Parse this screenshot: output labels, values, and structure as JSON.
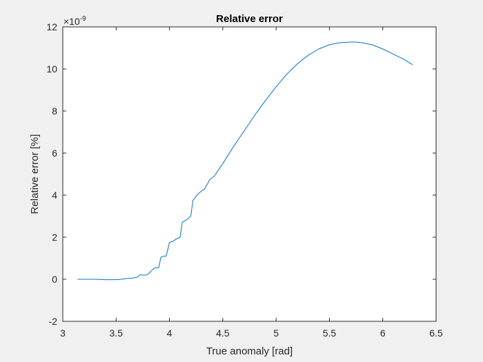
{
  "chart_data": {
    "type": "line",
    "title": "Relative error",
    "xlabel": "True anomaly [rad]",
    "ylabel": "Relative error [%]",
    "y_exponent_label": "×10",
    "y_exponent_power": "-9",
    "xlim": [
      3,
      6.5
    ],
    "ylim": [
      -2,
      12
    ],
    "xticks": [
      "3",
      "3.5",
      "4",
      "4.5",
      "5",
      "5.5",
      "6",
      "6.5"
    ],
    "yticks": [
      "-2",
      "0",
      "2",
      "4",
      "6",
      "8",
      "10",
      "12"
    ],
    "grid": false,
    "box": true,
    "colors": {
      "background": "#f0f0f0",
      "axes_background": "#ffffff",
      "axes": "#262626",
      "series": "#0072bd"
    },
    "series": [
      {
        "x": [
          3.14,
          3.3,
          3.4,
          3.5,
          3.55,
          3.62,
          3.65,
          3.7,
          3.72,
          3.78,
          3.8,
          3.85,
          3.87,
          3.9,
          3.92,
          3.95,
          3.97,
          4.0,
          4.03,
          4.06,
          4.08,
          4.1,
          4.12,
          4.15,
          4.18,
          4.2,
          4.22,
          4.25,
          4.3,
          4.33,
          4.38,
          4.42,
          4.5,
          4.6,
          4.7,
          4.8,
          4.9,
          5.0,
          5.1,
          5.2,
          5.3,
          5.4,
          5.5,
          5.6,
          5.7,
          5.75,
          5.8,
          5.9,
          6.0,
          6.1,
          6.2,
          6.28
        ],
        "y": [
          0.0,
          0.0,
          -0.02,
          -0.02,
          0.0,
          0.05,
          0.05,
          0.1,
          0.2,
          0.2,
          0.25,
          0.5,
          0.55,
          0.55,
          1.05,
          1.1,
          1.1,
          1.75,
          1.8,
          1.9,
          1.95,
          2.0,
          2.7,
          2.8,
          2.9,
          3.0,
          3.75,
          3.95,
          4.2,
          4.3,
          4.75,
          4.9,
          5.5,
          6.3,
          7.05,
          7.8,
          8.5,
          9.15,
          9.75,
          10.25,
          10.65,
          10.95,
          11.15,
          11.25,
          11.28,
          11.28,
          11.25,
          11.15,
          10.95,
          10.7,
          10.45,
          10.2
        ]
      }
    ]
  }
}
